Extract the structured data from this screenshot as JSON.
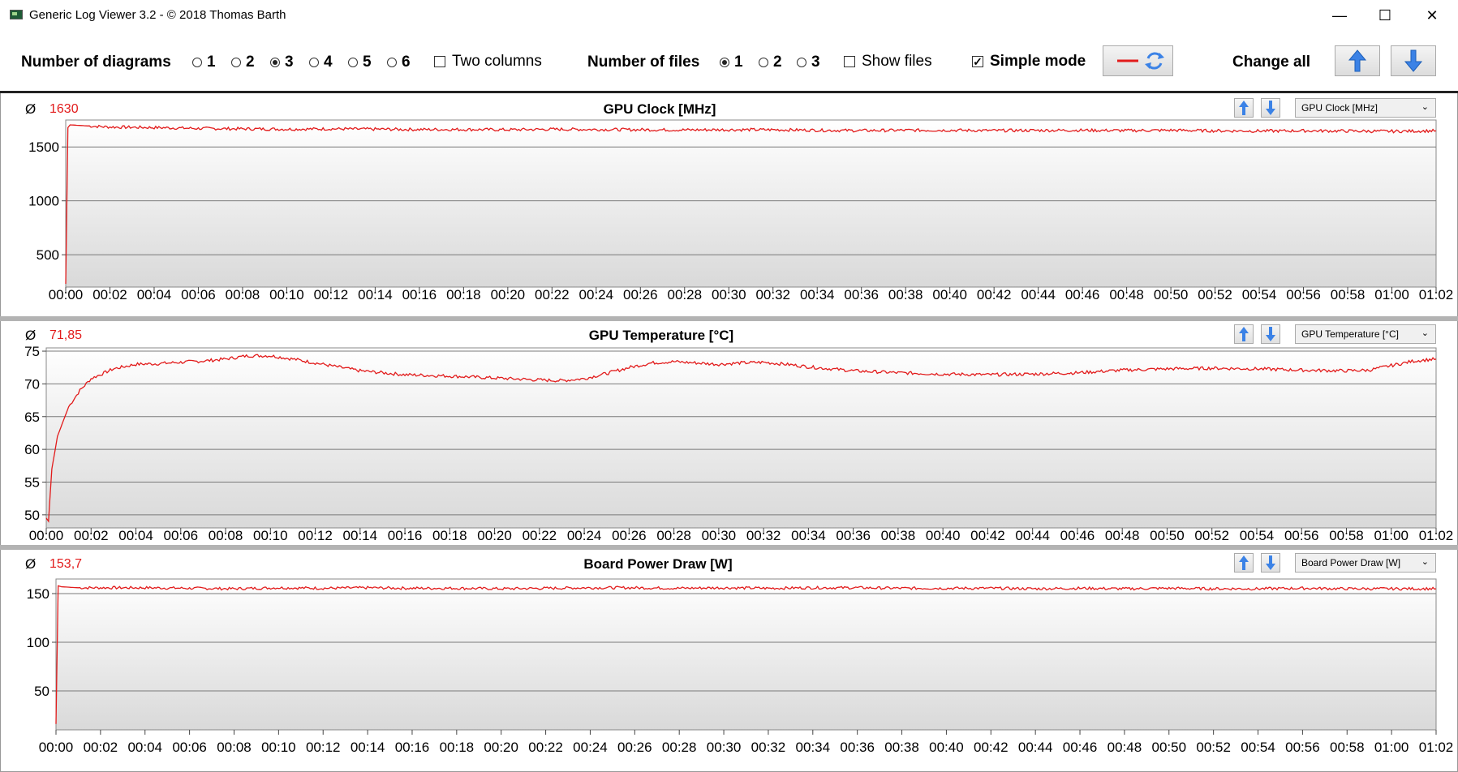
{
  "window": {
    "title": "Generic Log Viewer 3.2 - © 2018 Thomas Barth",
    "minimize": "—",
    "maximize": "☐",
    "close": "✕"
  },
  "toolbar": {
    "num_diagrams_label": "Number of diagrams",
    "diagram_options": [
      "1",
      "2",
      "3",
      "4",
      "5",
      "6"
    ],
    "diagram_selected": "3",
    "two_columns_label": "Two columns",
    "two_columns_checked": false,
    "num_files_label": "Number of files",
    "file_options": [
      "1",
      "2",
      "3"
    ],
    "file_selected": "1",
    "show_files_label": "Show files",
    "show_files_checked": false,
    "simple_mode_label": "Simple mode",
    "simple_mode_checked": true,
    "change_all_label": "Change all"
  },
  "colors": {
    "series": "#e21b1b",
    "arrow": "#3b82e6",
    "plot_top": "#ffffff",
    "plot_bottom": "#d9d9d9",
    "grid": "#7a7a7a"
  },
  "chart_data": [
    {
      "type": "line",
      "title": "GPU Clock [MHz]",
      "average_symbol": "Ø",
      "average": "1630",
      "dropdown": "GPU Clock [MHz]",
      "ylim": [
        200,
        1750
      ],
      "yticks": [
        "500",
        "1000",
        "1500"
      ],
      "ytick_values": [
        500,
        1000,
        1500
      ],
      "xlim_minutes": [
        0,
        62
      ],
      "xticks": [
        "00:00",
        "00:02",
        "00:04",
        "00:06",
        "00:08",
        "00:10",
        "00:12",
        "00:14",
        "00:16",
        "00:18",
        "00:20",
        "00:22",
        "00:24",
        "00:26",
        "00:28",
        "00:30",
        "00:32",
        "00:34",
        "00:36",
        "00:38",
        "00:40",
        "00:42",
        "00:44",
        "00:46",
        "00:48",
        "00:50",
        "00:52",
        "00:54",
        "00:56",
        "00:58",
        "01:00",
        "01:02"
      ],
      "series": [
        {
          "x": [
            0,
            0.1,
            0.2,
            1,
            2,
            4,
            6,
            8,
            10,
            12,
            14,
            16,
            18,
            20,
            22,
            24,
            26,
            28,
            30,
            32,
            34,
            36,
            38,
            40,
            42,
            44,
            46,
            48,
            50,
            52,
            54,
            56,
            58,
            60,
            62
          ],
          "y": [
            230,
            1680,
            1705,
            1695,
            1685,
            1680,
            1672,
            1668,
            1665,
            1668,
            1665,
            1662,
            1662,
            1660,
            1664,
            1662,
            1660,
            1658,
            1660,
            1660,
            1655,
            1652,
            1655,
            1655,
            1652,
            1654,
            1655,
            1652,
            1655,
            1650,
            1648,
            1650,
            1648,
            1645,
            1650
          ]
        }
      ]
    },
    {
      "type": "line",
      "title": "GPU Temperature [°C]",
      "average_symbol": "Ø",
      "average": "71,85",
      "dropdown": "GPU Temperature [°C]",
      "ylim": [
        48,
        75.5
      ],
      "yticks": [
        "50",
        "55",
        "60",
        "65",
        "70",
        "75"
      ],
      "ytick_values": [
        50,
        55,
        60,
        65,
        70,
        75
      ],
      "xlim_minutes": [
        0,
        62
      ],
      "xticks": [
        "00:00",
        "00:02",
        "00:04",
        "00:06",
        "00:08",
        "00:10",
        "00:12",
        "00:14",
        "00:16",
        "00:18",
        "00:20",
        "00:22",
        "00:24",
        "00:26",
        "00:28",
        "00:30",
        "00:32",
        "00:34",
        "00:36",
        "00:38",
        "00:40",
        "00:42",
        "00:44",
        "00:46",
        "00:48",
        "00:50",
        "00:52",
        "00:54",
        "00:56",
        "00:58",
        "01:00",
        "01:02"
      ],
      "series": [
        {
          "x": [
            0,
            0.1,
            0.25,
            0.5,
            1,
            1.5,
            2,
            3,
            4,
            5,
            6,
            7,
            8,
            9,
            10,
            11,
            12,
            13,
            14,
            16,
            18,
            20,
            22,
            23,
            24,
            25,
            26,
            27,
            28,
            29,
            30,
            31,
            32,
            33,
            34,
            36,
            38,
            40,
            42,
            44,
            46,
            48,
            50,
            52,
            54,
            56,
            58,
            59,
            60,
            61,
            62
          ],
          "y": [
            49.5,
            49,
            57,
            62,
            66.5,
            69,
            70.8,
            72.3,
            73,
            73.1,
            73.3,
            73.5,
            73.8,
            74.3,
            74.3,
            73.8,
            73.2,
            72.6,
            72,
            71.4,
            71.2,
            70.9,
            70.6,
            70.5,
            70.8,
            71.6,
            72.5,
            73.2,
            73.4,
            73.2,
            73,
            73.2,
            73.3,
            73,
            72.6,
            72,
            71.7,
            71.5,
            71.4,
            71.5,
            71.7,
            72.1,
            72.3,
            72.4,
            72.3,
            72.1,
            72,
            72.1,
            72.8,
            73.5,
            73.8
          ]
        }
      ]
    },
    {
      "type": "line",
      "title": "Board Power Draw [W]",
      "average_symbol": "Ø",
      "average": "153,7",
      "dropdown": "Board Power Draw [W]",
      "ylim": [
        10,
        165
      ],
      "yticks": [
        "50",
        "100",
        "150"
      ],
      "ytick_values": [
        50,
        100,
        150
      ],
      "xlim_minutes": [
        0,
        62
      ],
      "xticks": [
        "00:00",
        "00:02",
        "00:04",
        "00:06",
        "00:08",
        "00:10",
        "00:12",
        "00:14",
        "00:16",
        "00:18",
        "00:20",
        "00:22",
        "00:24",
        "00:26",
        "00:28",
        "00:30",
        "00:32",
        "00:34",
        "00:36",
        "00:38",
        "00:40",
        "00:42",
        "00:44",
        "00:46",
        "00:48",
        "00:50",
        "00:52",
        "00:54",
        "00:56",
        "00:58",
        "01:00",
        "01:02"
      ],
      "series": [
        {
          "x": [
            0,
            0.1,
            0.25,
            1,
            2,
            4,
            6,
            8,
            10,
            12,
            14,
            16,
            18,
            20,
            22,
            24,
            26,
            28,
            30,
            32,
            34,
            36,
            38,
            40,
            42,
            44,
            46,
            48,
            50,
            52,
            54,
            56,
            58,
            60,
            62
          ],
          "y": [
            16,
            158,
            157,
            156,
            156,
            156,
            155.5,
            155,
            156,
            155.5,
            156,
            155.5,
            155.5,
            155,
            155.5,
            156,
            156,
            155.5,
            156,
            155.5,
            156,
            156,
            155.5,
            155.5,
            155.5,
            155,
            155.5,
            155,
            155.5,
            155,
            155,
            155.5,
            155,
            155,
            155
          ]
        }
      ]
    }
  ]
}
